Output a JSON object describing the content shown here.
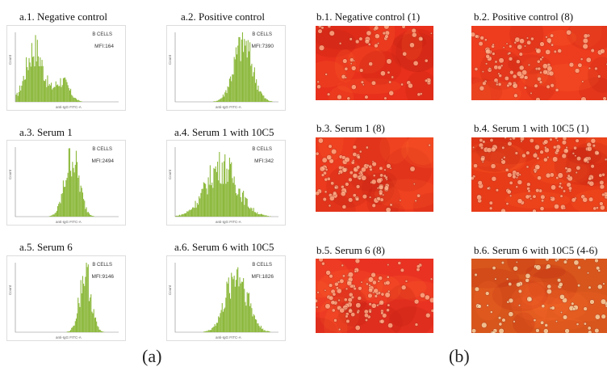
{
  "histograms": [
    {
      "title": "a.1. Negative control",
      "label": "B CELLS",
      "mfi": "MFI:164",
      "ylabel": "Count",
      "xlabel": "anti-IgG FITC-A",
      "color": "#8bb83a",
      "shape": "neg"
    },
    {
      "title": "a.2. Positive control",
      "label": "B CELLS",
      "mfi": "MFI:7390",
      "ylabel": "Count",
      "xlabel": "anti-IgG FITC-A",
      "color": "#8bb83a",
      "shape": "pos"
    },
    {
      "title": "a.3. Serum 1",
      "label": "B CELLS",
      "mfi": "MFI:2494",
      "ylabel": "Count",
      "xlabel": "anti-IgG FITC-A",
      "color": "#8bb83a",
      "shape": "mid"
    },
    {
      "title": "a.4. Serum 1 with 10C5",
      "label": "B CELLS",
      "mfi": "MFI:342",
      "ylabel": "Count",
      "xlabel": "anti-IgG FITC-A",
      "color": "#8bb83a",
      "shape": "broad"
    },
    {
      "title": "a.5. Serum 6",
      "label": "B CELLS",
      "mfi": "MFI:9146",
      "ylabel": "Count",
      "xlabel": "anti-IgG FITC-A",
      "color": "#8bb83a",
      "shape": "high"
    },
    {
      "title": "a.6. Serum 6 with 10C5",
      "label": "B CELLS",
      "mfi": "MFI:1826",
      "ylabel": "Count",
      "xlabel": "anti-IgG FITC-A",
      "color": "#8bb83a",
      "shape": "midbroad"
    }
  ],
  "micrographs": [
    {
      "title": "b.1. Negative control (1)",
      "base": "#e8301c",
      "dots": "sparse"
    },
    {
      "title": "b.2. Positive control (8)",
      "base": "#ee3c1e",
      "dots": "cluster"
    },
    {
      "title": "b.3. Serum 1 (8)",
      "base": "#ec3a1e",
      "dots": "cluster"
    },
    {
      "title": "b.4. Serum 1 with 10C5 (1)",
      "base": "#e83b18",
      "dots": "many"
    },
    {
      "title": "b.5. Serum 6 (8)",
      "base": "#ea3222",
      "dots": "cluster"
    },
    {
      "title": "b.6. Serum 6 with 10C5 (4-6)",
      "base": "#d8561c",
      "dots": "textured"
    }
  ],
  "panel_labels": {
    "a": "(a)",
    "b": "(b)"
  }
}
